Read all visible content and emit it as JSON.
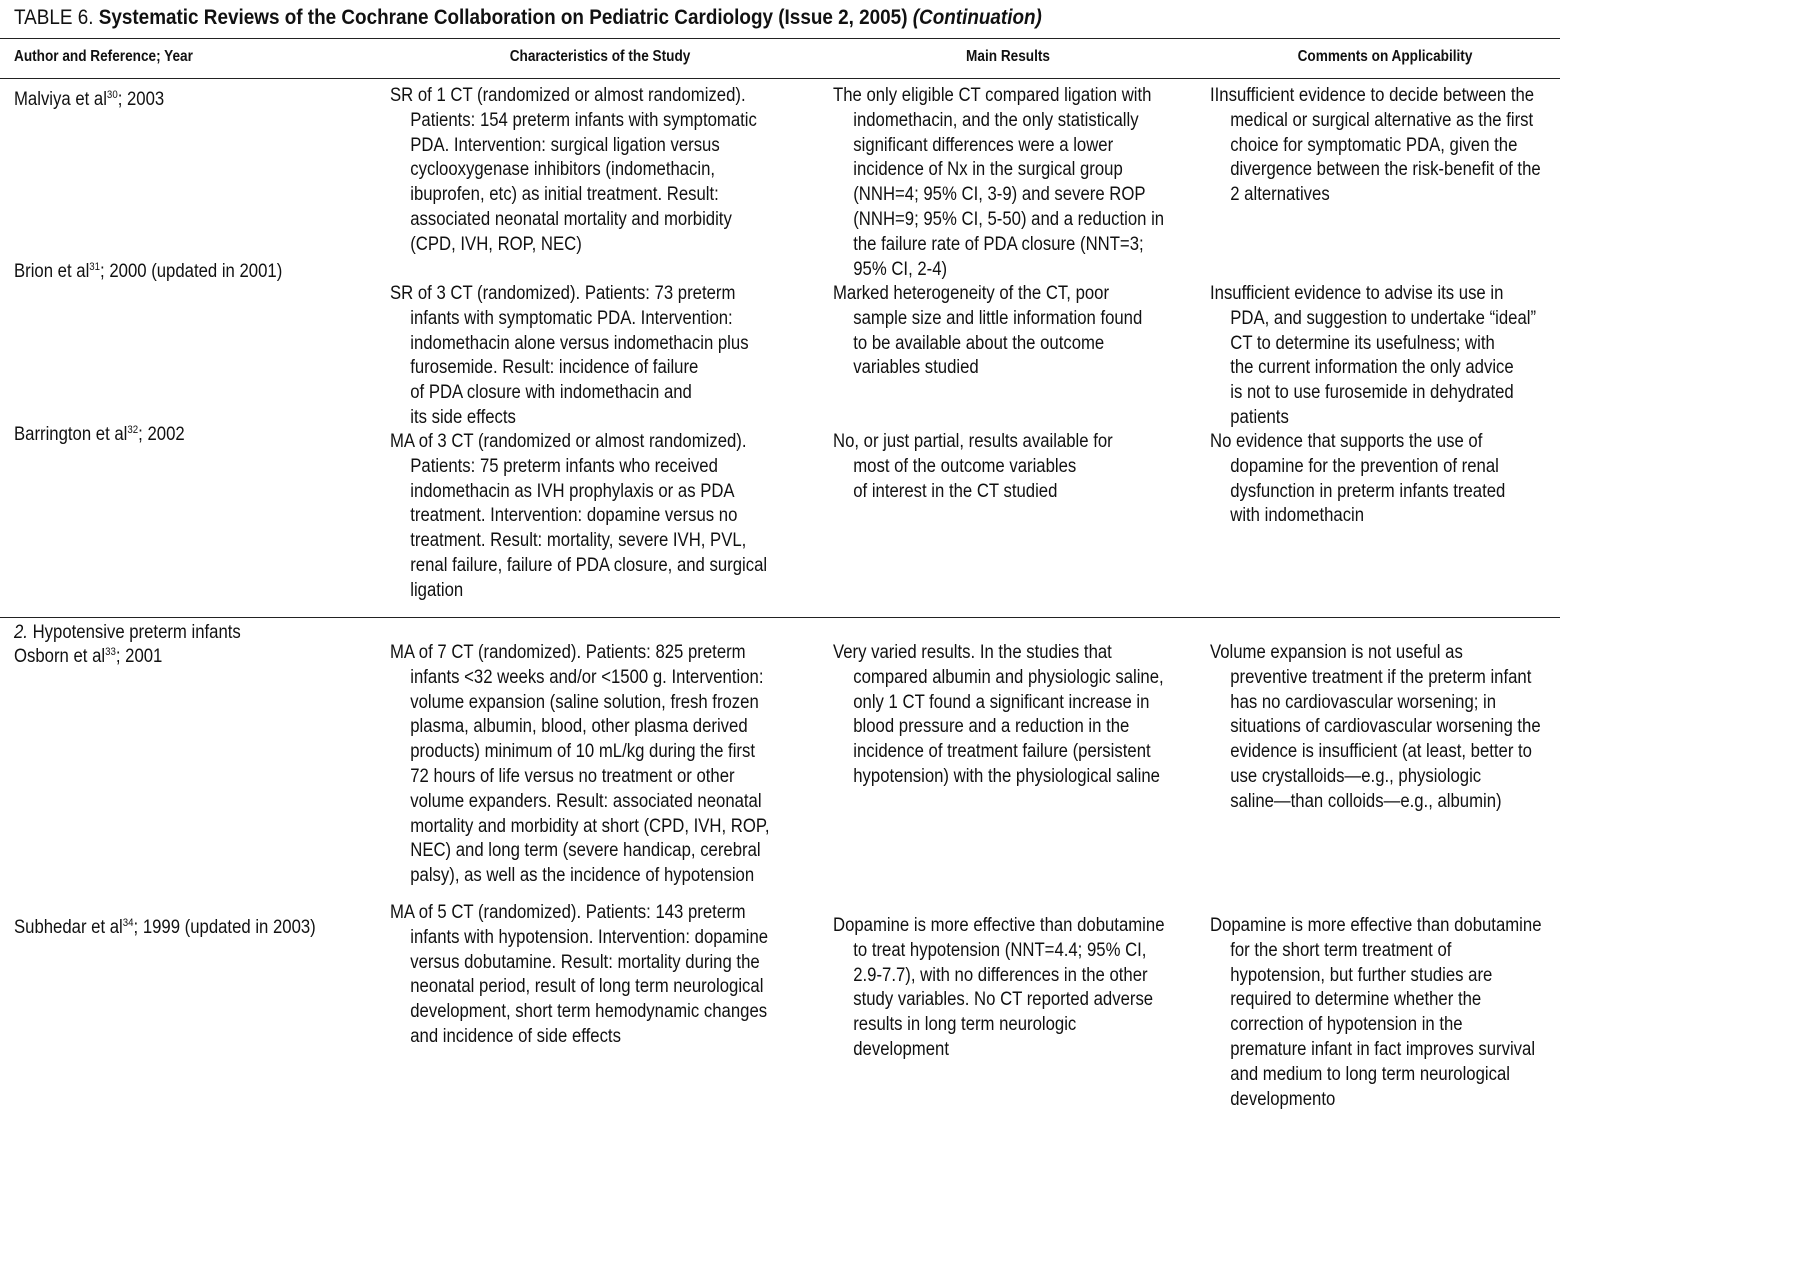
{
  "title": {
    "prefix": "TABLE 6.",
    "main": "Systematic Reviews of the Cochrane Collaboration on Pediatric Cardiology (Issue 2, 2005)",
    "suffix": "(Continuation)"
  },
  "headers": [
    "Author and Reference; Year",
    "Characteristics of the Study",
    "Main Results",
    "Comments on Applicability"
  ],
  "section2": {
    "number": "2.",
    "label": "Hypotensive preterm infants"
  },
  "rows": [
    {
      "author": {
        "name": "Malviya et al",
        "ref": "30",
        "year": "; 2003"
      },
      "characteristics": [
        "SR of 1 CT (randomized or almost randomized).",
        "Patients: 154 preterm infants with symptomatic",
        "PDA. Intervention: surgical ligation versus",
        "cyclooxygenase inhibitors (indomethacin,",
        "ibuprofen, etc) as initial treatment. Result:",
        "associated neonatal mortality and morbidity",
        "(CPD, IVH, ROP, NEC)"
      ],
      "results": [
        "The only eligible CT compared ligation with",
        "indomethacin, and the only statistically",
        "significant differences were a lower",
        "incidence of Nx in the surgical group",
        "(NNH=4; 95% CI, 3-9) and severe ROP",
        "(NNH=9; 95% CI, 5-50) and a reduction in",
        "the failure rate of PDA closure (NNT=3;",
        "95% CI, 2-4)"
      ],
      "comments": [
        "IInsufficient evidence to decide between the",
        "medical or surgical alternative as the first",
        "choice for symptomatic PDA, given the",
        "divergence between the risk-benefit of the",
        "2 alternatives"
      ]
    },
    {
      "author": {
        "name": "Brion et al",
        "ref": "31",
        "year": "; 2000 (updated in 2001)"
      },
      "characteristics": [
        "SR of 3 CT (randomized). Patients: 73 preterm",
        "infants with symptomatic PDA. Intervention:",
        "indomethacin alone versus indomethacin plus",
        "furosemide. Result: incidence of failure",
        "of PDA closure with indomethacin and",
        "its side effects"
      ],
      "results": [
        "Marked heterogeneity of the CT, poor",
        "sample size and little information found",
        "to be available about the outcome",
        "variables studied"
      ],
      "comments": [
        "Insufficient evidence to advise its use in",
        "PDA, and suggestion to undertake “ideal”",
        "CT to determine its usefulness; with",
        "the current information the only advice",
        "is not to use furosemide in dehydrated",
        "patients"
      ]
    },
    {
      "author": {
        "name": "Barrington et al",
        "ref": "32",
        "year": "; 2002"
      },
      "characteristics": [
        "MA of 3 CT (randomized or almost randomized).",
        "Patients: 75 preterm infants who received",
        "indomethacin as IVH prophylaxis or as PDA",
        "treatment. Intervention: dopamine versus no",
        "treatment. Result: mortality, severe IVH, PVL,",
        "renal failure, failure of PDA closure, and surgical",
        "ligation"
      ],
      "results": [
        "No, or just partial, results available for",
        "most of the outcome variables",
        "of interest in the CT studied"
      ],
      "comments": [
        "No evidence that supports the use of",
        "dopamine for the prevention of renal",
        "dysfunction in preterm infants treated",
        "with indomethacin"
      ]
    },
    {
      "author": {
        "name": "Osborn et al",
        "ref": "33",
        "year": "; 2001"
      },
      "characteristics": [
        "MA of 7 CT (randomized). Patients: 825 preterm",
        "infants <32 weeks and/or <1500 g. Intervention:",
        "volume expansion (saline solution, fresh frozen",
        "plasma, albumin, blood, other plasma derived",
        "products) minimum of 10 mL/kg during the first",
        "72 hours of life versus no treatment or other",
        "volume expanders. Result: associated neonatal",
        "mortality and morbidity at short (CPD, IVH, ROP,",
        "NEC) and long term (severe handicap, cerebral",
        "palsy), as well as the incidence of hypotension"
      ],
      "results": [
        "Very varied results. In the studies that",
        "compared albumin and physiologic saline,",
        "only 1 CT found a significant increase in",
        "blood pressure and a reduction in the",
        "incidence of treatment failure (persistent",
        "hypotension) with the physiological saline"
      ],
      "comments": [
        "Volume expansion is not useful as",
        "preventive treatment if the preterm infant",
        "has no cardiovascular worsening; in",
        "situations of cardiovascular worsening the",
        "evidence is insufficient (at least, better to",
        "use crystalloids—e.g., physiologic",
        "saline—than colloids—e.g., albumin)"
      ]
    },
    {
      "author": {
        "name": "Subhedar et al",
        "ref": "34",
        "year": "; 1999 (updated in 2003)"
      },
      "characteristics": [
        "MA of 5 CT (randomized). Patients: 143 preterm",
        "infants with hypotension. Intervention: dopamine",
        "versus dobutamine. Result: mortality during the",
        "neonatal period, result of long term neurological",
        "development, short term hemodynamic changes",
        "and incidence of side effects"
      ],
      "results": [
        "Dopamine is more effective than dobutamine",
        "to treat hypotension (NNT=4.4; 95% CI,",
        "2.9-7.7), with no differences in the other",
        "study variables. No CT reported adverse",
        "results in long term neurologic",
        "development"
      ],
      "comments": [
        "Dopamine is more effective than dobutamine",
        "for the short term treatment of",
        "hypotension, but further studies are",
        "required to determine whether the",
        "correction of hypotension in the",
        "premature infant in fact improves survival",
        "and medium to long term neurological",
        "developmento"
      ]
    }
  ]
}
